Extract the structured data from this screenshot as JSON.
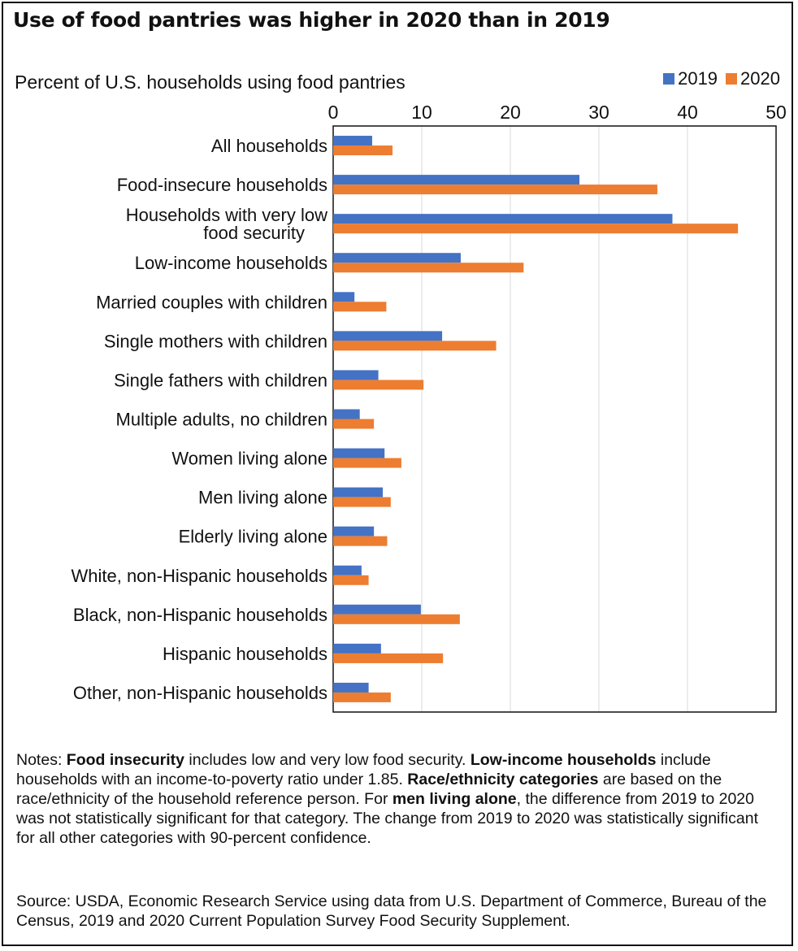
{
  "title": "Use of food pantries was higher in 2020 than in 2019",
  "subtitle": "Percent of U.S. households using food pantries",
  "legend": [
    {
      "label": "2019",
      "color": "#4472c4"
    },
    {
      "label": "2020",
      "color": "#ed7d31"
    }
  ],
  "chart_data": {
    "type": "bar",
    "orientation": "horizontal",
    "title": "Use of food pantries was higher in 2020 than in 2019",
    "subtitle": "Percent of U.S. households using food pantries",
    "xlim": [
      0,
      50
    ],
    "x_ticks": [
      "0",
      "10",
      "20",
      "30",
      "40",
      "50"
    ],
    "x_axis_position": "top",
    "grid": true,
    "legend_position": "top-right",
    "categories": [
      [
        "All households"
      ],
      [
        "Food-insecure households"
      ],
      [
        "Households with very low",
        "food security"
      ],
      [
        "Low-income households"
      ],
      [
        "Married couples with children"
      ],
      [
        "Single mothers with children"
      ],
      [
        "Single fathers with children"
      ],
      [
        "Multiple adults, no children"
      ],
      [
        "Women living alone"
      ],
      [
        "Men living alone"
      ],
      [
        "Elderly living alone"
      ],
      [
        "White, non-Hispanic households"
      ],
      [
        "Black, non-Hispanic households"
      ],
      [
        "Hispanic households"
      ],
      [
        "Other, non-Hispanic households"
      ]
    ],
    "series": [
      {
        "name": "2019",
        "color": "#4472c4",
        "values": [
          4.4,
          27.8,
          38.3,
          14.4,
          2.4,
          12.3,
          5.1,
          3.0,
          5.8,
          5.6,
          4.6,
          3.2,
          9.9,
          5.4,
          4.0
        ]
      },
      {
        "name": "2020",
        "color": "#ed7d31",
        "values": [
          6.7,
          36.6,
          45.7,
          21.5,
          6.0,
          18.4,
          10.2,
          4.6,
          7.7,
          6.5,
          6.1,
          4.0,
          14.3,
          12.4,
          6.5
        ]
      }
    ]
  },
  "notes": {
    "prefix": "Notes: ",
    "t1": "Food insecurity",
    "t2": " includes low and very low food security. ",
    "t3": "Low-income households",
    "t4": " include households with an income-to-poverty ratio under 1.85. ",
    "t5": "Race/ethnicity categories",
    "t6": " are based on the race/ethnicity of the household reference person. For ",
    "t7": "men living alone",
    "t8": ", the difference from 2019 to 2020 was not statistically significant for that category. The change from 2019 to 2020 was statistically significant for all other categories with 90-percent confidence."
  },
  "source": "Source: USDA, Economic Research Service using data from U.S. Department of Commerce, Bureau of the Census, 2019 and 2020 Current Population Survey Food Security Supplement."
}
